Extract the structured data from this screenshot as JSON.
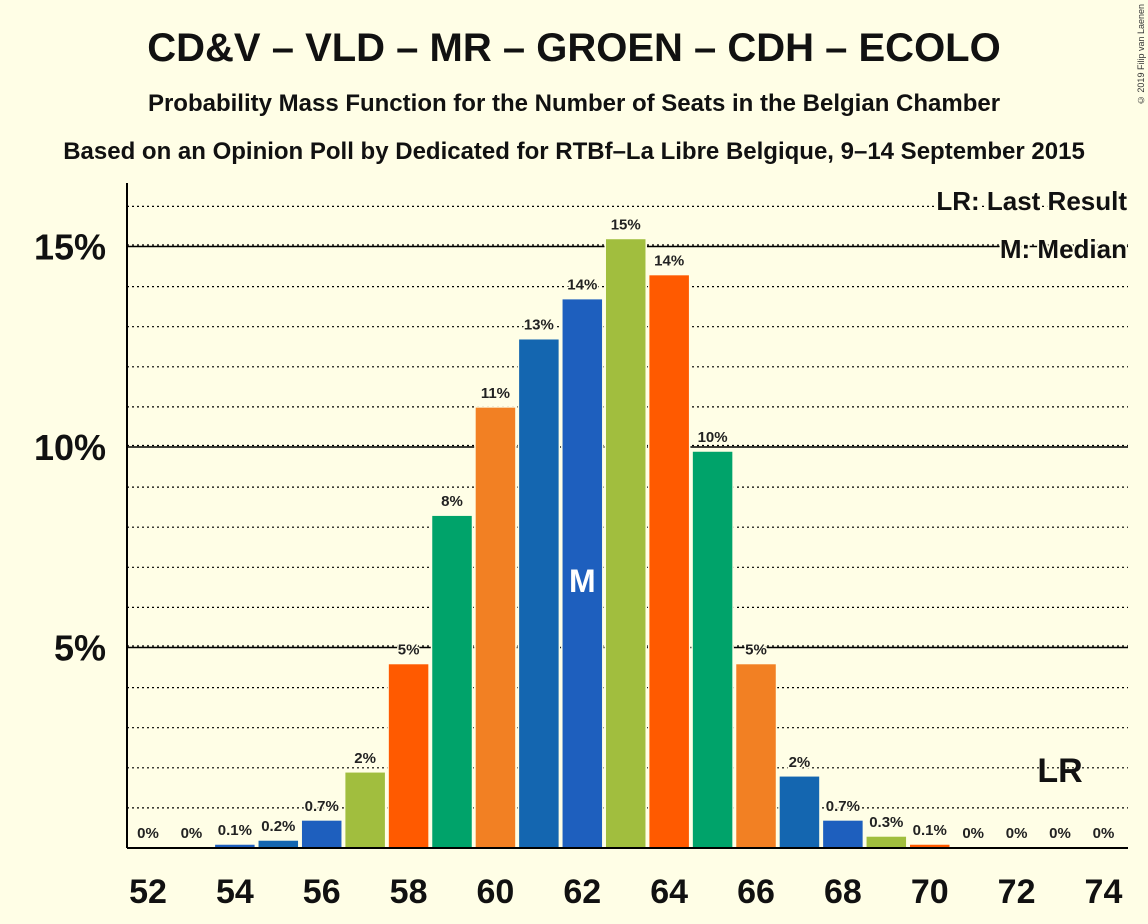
{
  "title": "CD&V – VLD – MR – GROEN – CDH – ECOLO",
  "subtitle": "Probability Mass Function for the Number of Seats in the Belgian Chamber",
  "subtitle2": "Based on an Opinion Poll by Dedicated for RTBf–La Libre Belgique, 9–14 September 2015",
  "copyright": "© 2019 Filip van Laenen",
  "legend": {
    "last_result": "LR: Last Result",
    "median": "M: Median"
  },
  "markers": {
    "median_label": "M",
    "median_seat": 62,
    "last_result_label": "LR",
    "last_result_seat": 73
  },
  "colors": {
    "background": "#FFFEE6",
    "palette": [
      "#F28023",
      "#1466B0",
      "#1E5FBE",
      "#A1BE3E",
      "#FF5A00",
      "#00A36A"
    ]
  },
  "chart_data": {
    "type": "bar",
    "x": [
      52,
      53,
      54,
      55,
      56,
      57,
      58,
      59,
      60,
      61,
      62,
      63,
      64,
      65,
      66,
      67,
      68,
      69,
      70,
      71,
      72,
      73,
      74
    ],
    "values": [
      0,
      0,
      0.1,
      0.2,
      0.7,
      1.9,
      4.6,
      8.3,
      11.0,
      12.7,
      13.7,
      15.2,
      14.3,
      9.9,
      4.6,
      1.8,
      0.7,
      0.3,
      0.1,
      0,
      0,
      0,
      0
    ],
    "data_labels": [
      "0%",
      "0%",
      "0.1%",
      "0.2%",
      "0.7%",
      "2%",
      "5%",
      "8%",
      "11%",
      "13%",
      "14%",
      "15%",
      "14%",
      "10%",
      "5%",
      "2%",
      "0.7%",
      "0.3%",
      "0.1%",
      "0%",
      "0%",
      "0%",
      "0%"
    ],
    "bar_colors": [
      "#F28023",
      "#1466B0",
      "#1E5FBE",
      "#1466B0",
      "#1E5FBE",
      "#A1BE3E",
      "#FF5A00",
      "#00A36A",
      "#F28023",
      "#1466B0",
      "#1E5FBE",
      "#A1BE3E",
      "#FF5A00",
      "#00A36A",
      "#F28023",
      "#1466B0",
      "#1E5FBE",
      "#A1BE3E",
      "#FF5A00",
      "#00A36A",
      "#F28023",
      "#1466B0",
      "#1E5FBE"
    ],
    "x_ticks": [
      52,
      54,
      56,
      58,
      60,
      62,
      64,
      66,
      68,
      70,
      72,
      74
    ],
    "x_tick_labels": [
      "52",
      "54",
      "56",
      "58",
      "60",
      "62",
      "64",
      "66",
      "68",
      "70",
      "72",
      "74"
    ],
    "y_ticks": [
      5,
      10,
      15
    ],
    "y_tick_labels": [
      "5%",
      "10%",
      "15%"
    ],
    "ylim": [
      0,
      16.5
    ],
    "grid": true
  }
}
